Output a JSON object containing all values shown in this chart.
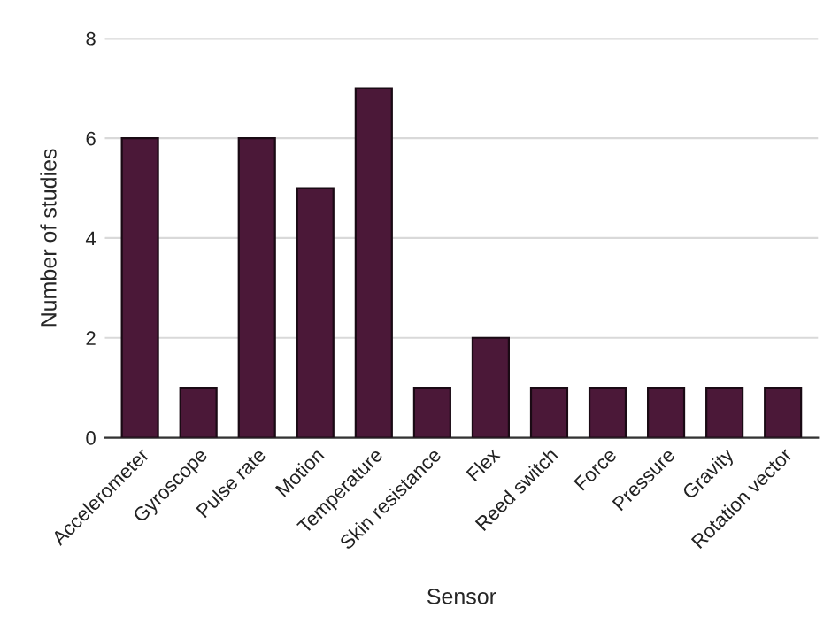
{
  "chart_data": {
    "type": "bar",
    "xlabel": "Sensor",
    "ylabel": "Number of studies",
    "categories": [
      "Accelerometer",
      "Gyroscope",
      "Pulse rate",
      "Motion",
      "Temperature",
      "Skin resistance",
      "Flex",
      "Reed switch",
      "Force",
      "Pressure",
      "Gravity",
      "Rotation vector"
    ],
    "values": [
      6,
      1,
      6,
      5,
      7,
      1,
      2,
      1,
      1,
      1,
      1,
      1
    ],
    "color": "#4b1838",
    "ylim": [
      0,
      8
    ],
    "yticks": [
      0,
      2,
      4,
      6,
      8
    ],
    "grid": "y"
  }
}
